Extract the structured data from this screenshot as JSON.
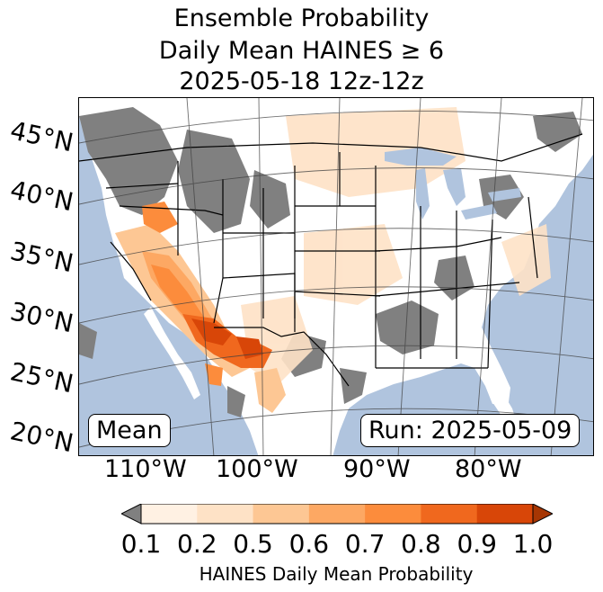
{
  "title": {
    "line1": "Ensemble Probability",
    "line2": "Daily Mean HAINES ≥ 6",
    "line3": "2025-05-18 12z-12z"
  },
  "map": {
    "ocean_color": "#b0c4de",
    "land_color": "#ffffff",
    "missing_color": "#808080",
    "lat_labels": [
      "45°N",
      "40°N",
      "35°N",
      "30°N",
      "25°N",
      "20°N"
    ],
    "lon_labels": [
      "110°W",
      "100°W",
      "90°W",
      "80°W"
    ],
    "stat_box": "Mean",
    "run_box": "Run: 2025-05-09"
  },
  "colorbar": {
    "ticks": [
      "0.1",
      "0.2",
      "0.5",
      "0.6",
      "0.7",
      "0.8",
      "0.9",
      "1.0"
    ],
    "colors": [
      "#fff1e3",
      "#fee2c6",
      "#fdc794",
      "#fda863",
      "#fc8c3c",
      "#f0681e",
      "#d84608"
    ],
    "under_color": "#808080",
    "over_color": "#a63603",
    "label": "HAINES Daily Mean Probability"
  }
}
